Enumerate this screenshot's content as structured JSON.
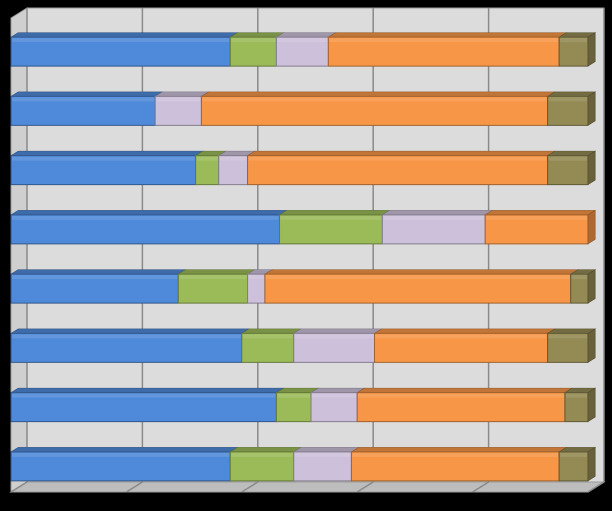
{
  "chart_data": {
    "type": "bar",
    "orientation": "horizontal",
    "stacked": "percent",
    "style": "3d",
    "grid": true,
    "legend": "none",
    "xlim": [
      0,
      100
    ],
    "x_major_step": 20,
    "categories": [
      "",
      "",
      "",
      "",
      "",
      "",
      "",
      ""
    ],
    "colors": {
      "background": "#000000",
      "plot_back_wall": "#dcdcdc",
      "plot_floor": "#bdbdbd",
      "gridline": "#8a8a8a"
    },
    "series": [
      {
        "color": "#4f89d9",
        "values": [
          38,
          25,
          32,
          47,
          29,
          40,
          46,
          38
        ]
      },
      {
        "color": "#9bbb59",
        "values": [
          8,
          0,
          4,
          18,
          12,
          9,
          6,
          11
        ]
      },
      {
        "color": "#ccc0da",
        "values": [
          9,
          8,
          5,
          18,
          3,
          14,
          8,
          10
        ]
      },
      {
        "color": "#f79646",
        "values": [
          40,
          60,
          52,
          18,
          53,
          30,
          36,
          36
        ]
      },
      {
        "color": "#948a54",
        "values": [
          5,
          7,
          7,
          0,
          3,
          7,
          4,
          5
        ]
      }
    ]
  }
}
